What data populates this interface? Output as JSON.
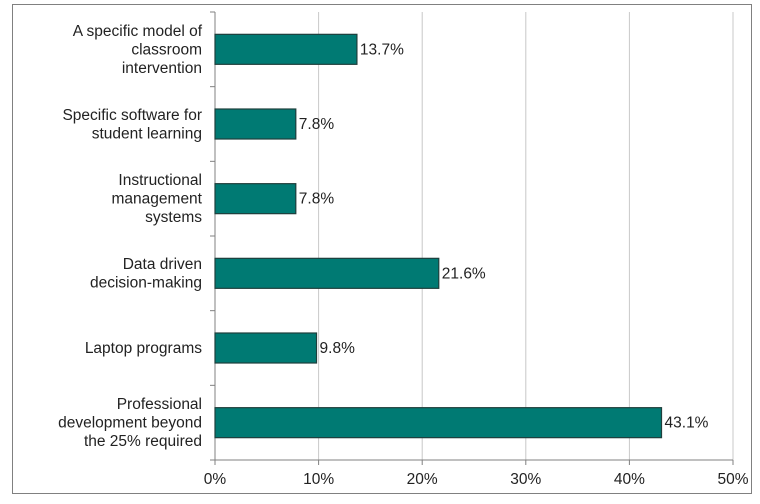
{
  "chart_data": {
    "type": "bar",
    "orientation": "horizontal",
    "categories": [
      [
        "A specific model of",
        "classroom",
        "intervention"
      ],
      [
        "Specific software for",
        "student learning"
      ],
      [
        "Instructional",
        "management",
        "systems"
      ],
      [
        "Data driven",
        "decision-making"
      ],
      [
        "Laptop programs"
      ],
      [
        "Professional",
        "development beyond",
        "the 25% required"
      ]
    ],
    "values": [
      13.7,
      7.8,
      7.8,
      21.6,
      9.8,
      43.1
    ],
    "value_labels": [
      "13.7%",
      "7.8%",
      "7.8%",
      "21.6%",
      "9.8%",
      "43.1%"
    ],
    "xlim": [
      0,
      50
    ],
    "xticks": [
      0,
      10,
      20,
      30,
      40,
      50
    ],
    "xtick_labels": [
      "0%",
      "10%",
      "20%",
      "30%",
      "40%",
      "50%"
    ],
    "grid": "vertical",
    "legend": "none",
    "bar_color": "#007a73",
    "title": "",
    "xlabel": "",
    "ylabel": ""
  }
}
